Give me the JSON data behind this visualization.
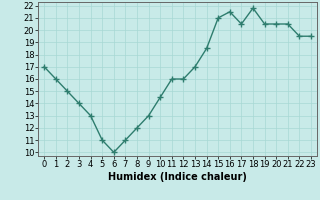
{
  "values": [
    17,
    16,
    15,
    14,
    13,
    11,
    10,
    11,
    12,
    13,
    14.5,
    16,
    16,
    17,
    18.5,
    21,
    21.5,
    20.5,
    21.8,
    20.5,
    20.5,
    20.5,
    19.5,
    19.5
  ],
  "line_color": "#2e7d6e",
  "bg_color": "#c8eae8",
  "grid_color": "#a8d8d4",
  "xlabel": "Humidex (Indice chaleur)",
  "xlim": [
    -0.5,
    23.5
  ],
  "ylim": [
    9.7,
    22.3
  ],
  "yticks": [
    10,
    11,
    12,
    13,
    14,
    15,
    16,
    17,
    18,
    19,
    20,
    21,
    22
  ],
  "xticks": [
    0,
    1,
    2,
    3,
    4,
    5,
    6,
    7,
    8,
    9,
    10,
    11,
    12,
    13,
    14,
    15,
    16,
    17,
    18,
    19,
    20,
    21,
    22,
    23
  ],
  "marker": "+",
  "markersize": 4,
  "markeredgewidth": 1.0,
  "linewidth": 1.0,
  "tick_fontsize": 6.0,
  "xlabel_fontsize": 7.0
}
